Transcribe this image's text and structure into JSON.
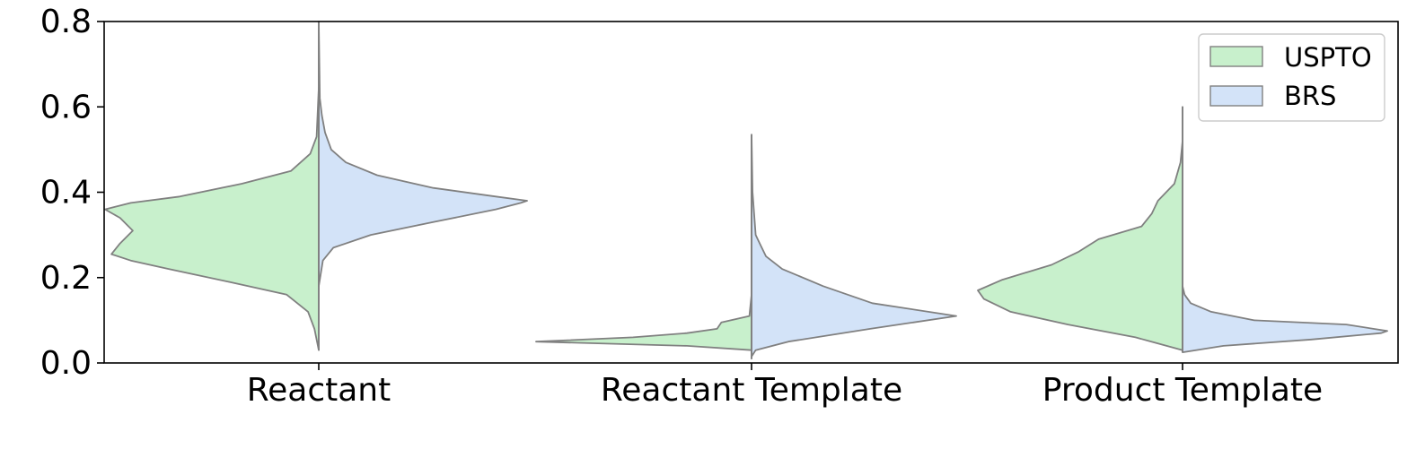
{
  "chart_data": {
    "type": "violin",
    "split": true,
    "categories": [
      "Reactant",
      "Reactant Template",
      "Product Template"
    ],
    "ylim": [
      0,
      0.8
    ],
    "yticks": [
      "0.0",
      "0.2",
      "0.4",
      "0.6",
      "0.8"
    ],
    "xlabel": "",
    "ylabel": "",
    "title": "",
    "grid": false,
    "legend_position": "top-right",
    "series": [
      {
        "name": "USPTO",
        "color": "#c8f0cc",
        "side": "left",
        "violins": [
          {
            "min": 0.03,
            "max": 0.645,
            "profile": [
              [
                0.03,
                0.0
              ],
              [
                0.08,
                0.02
              ],
              [
                0.12,
                0.05
              ],
              [
                0.16,
                0.15
              ],
              [
                0.19,
                0.42
              ],
              [
                0.22,
                0.7
              ],
              [
                0.24,
                0.88
              ],
              [
                0.255,
                0.97
              ],
              [
                0.28,
                0.93
              ],
              [
                0.31,
                0.87
              ],
              [
                0.34,
                0.93
              ],
              [
                0.36,
                1.0
              ],
              [
                0.375,
                0.88
              ],
              [
                0.39,
                0.65
              ],
              [
                0.42,
                0.36
              ],
              [
                0.45,
                0.13
              ],
              [
                0.49,
                0.04
              ],
              [
                0.53,
                0.01
              ],
              [
                0.645,
                0.0
              ]
            ]
          },
          {
            "min": 0.01,
            "max": 0.36,
            "profile": [
              [
                0.01,
                0.0
              ],
              [
                0.03,
                0.0
              ],
              [
                0.04,
                0.3
              ],
              [
                0.05,
                1.0
              ],
              [
                0.06,
                0.55
              ],
              [
                0.07,
                0.3
              ],
              [
                0.08,
                0.16
              ],
              [
                0.095,
                0.14
              ],
              [
                0.11,
                0.01
              ],
              [
                0.16,
                0.0
              ],
              [
                0.36,
                0.0
              ]
            ]
          },
          {
            "min": 0.03,
            "max": 0.6,
            "profile": [
              [
                0.03,
                0.0
              ],
              [
                0.06,
                0.23
              ],
              [
                0.09,
                0.56
              ],
              [
                0.12,
                0.84
              ],
              [
                0.15,
                0.97
              ],
              [
                0.17,
                1.0
              ],
              [
                0.195,
                0.88
              ],
              [
                0.23,
                0.64
              ],
              [
                0.26,
                0.51
              ],
              [
                0.29,
                0.41
              ],
              [
                0.32,
                0.2
              ],
              [
                0.35,
                0.15
              ],
              [
                0.38,
                0.12
              ],
              [
                0.42,
                0.04
              ],
              [
                0.47,
                0.01
              ],
              [
                0.52,
                0.0
              ],
              [
                0.6,
                0.0
              ]
            ]
          }
        ]
      },
      {
        "name": "BRS",
        "color": "#d3e3f8",
        "side": "right",
        "violins": [
          {
            "min": 0.18,
            "max": 0.8,
            "profile": [
              [
                0.18,
                0.0
              ],
              [
                0.24,
                0.02
              ],
              [
                0.27,
                0.07
              ],
              [
                0.3,
                0.25
              ],
              [
                0.33,
                0.55
              ],
              [
                0.36,
                0.85
              ],
              [
                0.375,
                0.97
              ],
              [
                0.38,
                1.0
              ],
              [
                0.39,
                0.85
              ],
              [
                0.41,
                0.55
              ],
              [
                0.44,
                0.28
              ],
              [
                0.47,
                0.13
              ],
              [
                0.5,
                0.06
              ],
              [
                0.54,
                0.03
              ],
              [
                0.58,
                0.015
              ],
              [
                0.62,
                0.005
              ],
              [
                0.8,
                0.0
              ]
            ]
          },
          {
            "min": 0.015,
            "max": 0.535,
            "profile": [
              [
                0.015,
                0.0
              ],
              [
                0.03,
                0.02
              ],
              [
                0.05,
                0.18
              ],
              [
                0.08,
                0.58
              ],
              [
                0.11,
                1.0
              ],
              [
                0.14,
                0.59
              ],
              [
                0.18,
                0.35
              ],
              [
                0.22,
                0.15
              ],
              [
                0.25,
                0.07
              ],
              [
                0.28,
                0.04
              ],
              [
                0.3,
                0.02
              ],
              [
                0.4,
                0.005
              ],
              [
                0.535,
                0.0
              ]
            ]
          },
          {
            "min": 0.025,
            "max": 0.18,
            "profile": [
              [
                0.025,
                0.0
              ],
              [
                0.04,
                0.2
              ],
              [
                0.055,
                0.63
              ],
              [
                0.07,
                0.97
              ],
              [
                0.075,
                1.0
              ],
              [
                0.09,
                0.8
              ],
              [
                0.1,
                0.35
              ],
              [
                0.12,
                0.14
              ],
              [
                0.14,
                0.04
              ],
              [
                0.16,
                0.01
              ],
              [
                0.18,
                0.0
              ]
            ]
          }
        ]
      }
    ]
  }
}
